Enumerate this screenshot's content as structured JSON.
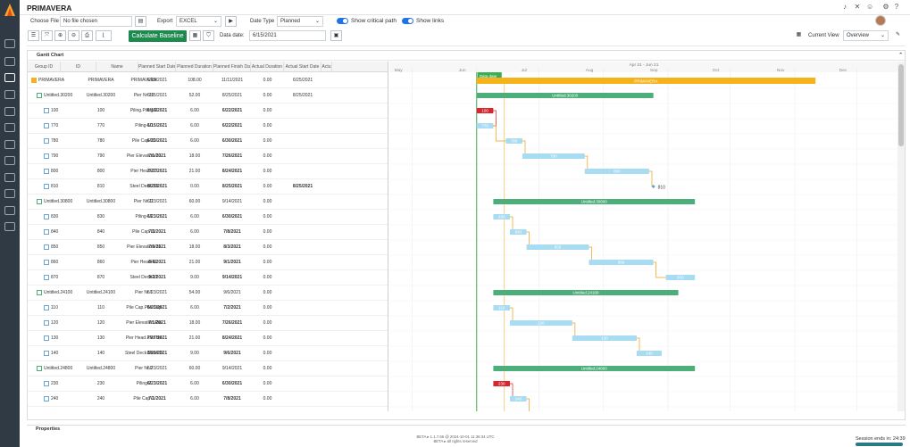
{
  "app": {
    "title": "PRIMAVERA"
  },
  "toolbar": {
    "choose_file_label": "Choose File",
    "no_file_text": "No file chosen",
    "export_label": "Export",
    "export_value": "EXCEL",
    "date_type_label": "Date Type",
    "date_type_value": "Planned",
    "show_critical_label": "Show critical path",
    "show_links_label": "Show links",
    "calc_baseline_label": "Calculate Baseline",
    "data_date_label": "Data date:",
    "data_date_value": "6/15/2021",
    "current_view_label": "Current View",
    "current_view_value": "Overview"
  },
  "gantt": {
    "panel_title": "Gantt Chart",
    "columns": [
      "Group ID",
      "ID",
      "Name",
      "Planned Start Date",
      "Planned Duration",
      "Planned Finish Date",
      "Actual Duration",
      "Actual Start Date",
      "Actu"
    ],
    "rows": [
      {
        "gid": "PRIMAVERA",
        "id": "PRIMAVERA",
        "name": "PRIMAVERA",
        "ps": "6/15/2021",
        "pd": "108.00",
        "pf": "11/11/2021",
        "ad": "0.00",
        "as": "6/25/2021",
        "type": "root"
      },
      {
        "gid": "Untitled.30200",
        "id": "Untitled.30200",
        "name": "Pier Nr 10",
        "ps": "6/15/2021",
        "pd": "52.00",
        "pf": "8/25/2021",
        "ad": "0.00",
        "as": "8/25/2021",
        "type": "group"
      },
      {
        "gid": "100",
        "id": "100",
        "name": "Piling.Piling-1",
        "ps": "6/15/2021",
        "pd": "6.00",
        "pf": "6/22/2021",
        "ad": "0.00",
        "as": "",
        "type": "task"
      },
      {
        "gid": "770",
        "id": "770",
        "name": "Piling-10",
        "ps": "6/15/2021",
        "pd": "6.00",
        "pf": "6/22/2021",
        "ad": "0.00",
        "as": "",
        "type": "task"
      },
      {
        "gid": "780",
        "id": "780",
        "name": "Pile Cap-10",
        "ps": "6/23/2021",
        "pd": "6.00",
        "pf": "6/30/2021",
        "ad": "0.00",
        "as": "",
        "type": "task"
      },
      {
        "gid": "790",
        "id": "790",
        "name": "Pier Elevation-10",
        "ps": "7/1/2021",
        "pd": "18.00",
        "pf": "7/26/2021",
        "ad": "0.00",
        "as": "",
        "type": "task"
      },
      {
        "gid": "800",
        "id": "800",
        "name": "Pier Head-10",
        "ps": "7/27/2021",
        "pd": "21.00",
        "pf": "8/24/2021",
        "ad": "0.00",
        "as": "",
        "type": "task"
      },
      {
        "gid": "810",
        "id": "810",
        "name": "Steel Deck-10",
        "ps": "8/25/2021",
        "pd": "0.00",
        "pf": "8/25/2021",
        "ad": "0.00",
        "as": "8/25/2021",
        "type": "task"
      },
      {
        "gid": "Untitled.30800",
        "id": "Untitled.30800",
        "name": "Pier Nr 11",
        "ps": "6/23/2021",
        "pd": "60.00",
        "pf": "9/14/2021",
        "ad": "0.00",
        "as": "",
        "type": "group"
      },
      {
        "gid": "830",
        "id": "830",
        "name": "Piling-11",
        "ps": "6/23/2021",
        "pd": "6.00",
        "pf": "6/30/2021",
        "ad": "0.00",
        "as": "",
        "type": "task"
      },
      {
        "gid": "840",
        "id": "840",
        "name": "Pile Cap-11",
        "ps": "7/1/2021",
        "pd": "6.00",
        "pf": "7/8/2021",
        "ad": "0.00",
        "as": "",
        "type": "task"
      },
      {
        "gid": "850",
        "id": "850",
        "name": "Pier Elevation-11",
        "ps": "7/9/2021",
        "pd": "18.00",
        "pf": "8/3/2021",
        "ad": "0.00",
        "as": "",
        "type": "task"
      },
      {
        "gid": "860",
        "id": "860",
        "name": "Pier Head-11",
        "ps": "8/4/2021",
        "pd": "21.00",
        "pf": "9/1/2021",
        "ad": "0.00",
        "as": "",
        "type": "task"
      },
      {
        "gid": "870",
        "id": "870",
        "name": "Steel Deck-11",
        "ps": "9/2/2021",
        "pd": "9.00",
        "pf": "9/14/2021",
        "ad": "0.00",
        "as": "",
        "type": "task"
      },
      {
        "gid": "Untitled.24100",
        "id": "Untitled.24100",
        "name": "Pier Nr 1",
        "ps": "6/23/2021",
        "pd": "54.00",
        "pf": "9/6/2021",
        "ad": "0.00",
        "as": "",
        "type": "group"
      },
      {
        "gid": "110",
        "id": "110",
        "name": "Pile Cap.Pile Cap",
        "ps": "6/23/2021",
        "pd": "6.00",
        "pf": "7/2/2021",
        "ad": "0.00",
        "as": "",
        "type": "task"
      },
      {
        "gid": "120",
        "id": "120",
        "name": "Pier Elevation.Pie",
        "ps": "7/1/2021",
        "pd": "18.00",
        "pf": "7/26/2021",
        "ad": "0.00",
        "as": "",
        "type": "task"
      },
      {
        "gid": "130",
        "id": "130",
        "name": "Pier Head.Pier He",
        "ps": "7/27/2021",
        "pd": "21.00",
        "pf": "8/24/2021",
        "ad": "0.00",
        "as": "",
        "type": "task"
      },
      {
        "gid": "140",
        "id": "140",
        "name": "Steel Deck.Steel D",
        "ps": "8/25/2021",
        "pd": "9.00",
        "pf": "9/6/2021",
        "ad": "0.00",
        "as": "",
        "type": "task"
      },
      {
        "gid": "Untitled.24800",
        "id": "Untitled.24800",
        "name": "Pier Nr 2",
        "ps": "6/23/2021",
        "pd": "60.00",
        "pf": "9/14/2021",
        "ad": "0.00",
        "as": "",
        "type": "group"
      },
      {
        "gid": "230",
        "id": "230",
        "name": "Piling-2",
        "ps": "6/23/2021",
        "pd": "6.00",
        "pf": "6/30/2021",
        "ad": "0.00",
        "as": "",
        "type": "task"
      },
      {
        "gid": "240",
        "id": "240",
        "name": "Pile Cap-2",
        "ps": "7/1/2021",
        "pd": "6.00",
        "pf": "7/8/2021",
        "ad": "0.00",
        "as": "",
        "type": "task"
      },
      {
        "gid": "250",
        "id": "250",
        "name": "Pier Elevation-2",
        "ps": "7/9/2021",
        "pd": "18.00",
        "pf": "8/3/2021",
        "ad": "0.00",
        "as": "",
        "type": "task"
      }
    ],
    "timeline": {
      "range_label": "Apr 21 - Jun 21",
      "months": [
        "May",
        "Jun",
        "Jul",
        "Aug",
        "Sep",
        "Oct",
        "Nov",
        "Dec"
      ],
      "data_date_label": "Data date"
    },
    "bars": [
      {
        "label": "PRIMAVERA",
        "start": "2021-06-01",
        "end": "2021-11-11",
        "kind": "root"
      },
      {
        "label": "Untitled.30200",
        "start": "2021-06-01",
        "end": "2021-08-25",
        "kind": "group"
      },
      {
        "label": "100",
        "start": "2021-06-01",
        "end": "2021-06-09",
        "kind": "critical"
      },
      {
        "label": "770",
        "start": "2021-06-01",
        "end": "2021-06-09",
        "kind": "task"
      },
      {
        "label": "780",
        "start": "2021-06-15",
        "end": "2021-06-23",
        "kind": "task"
      },
      {
        "label": "790",
        "start": "2021-06-23",
        "end": "2021-07-23",
        "kind": "task"
      },
      {
        "label": "800",
        "start": "2021-07-23",
        "end": "2021-08-23",
        "kind": "task"
      },
      {
        "label": "810",
        "start": "2021-08-25",
        "end": "2021-08-25",
        "kind": "milestone"
      },
      {
        "label": "Untitled.30800",
        "start": "2021-06-09",
        "end": "2021-09-14",
        "kind": "group"
      },
      {
        "label": "830",
        "start": "2021-06-09",
        "end": "2021-06-17",
        "kind": "task"
      },
      {
        "label": "840",
        "start": "2021-06-17",
        "end": "2021-06-25",
        "kind": "task"
      },
      {
        "label": "850",
        "start": "2021-06-25",
        "end": "2021-07-25",
        "kind": "task"
      },
      {
        "label": "860",
        "start": "2021-07-25",
        "end": "2021-08-25",
        "kind": "task"
      },
      {
        "label": "870",
        "start": "2021-08-31",
        "end": "2021-09-14",
        "kind": "task"
      },
      {
        "label": "Untitled.24100",
        "start": "2021-06-09",
        "end": "2021-09-06",
        "kind": "group"
      },
      {
        "label": "110",
        "start": "2021-06-09",
        "end": "2021-06-17",
        "kind": "task"
      },
      {
        "label": "120",
        "start": "2021-06-17",
        "end": "2021-07-17",
        "kind": "task"
      },
      {
        "label": "130",
        "start": "2021-07-17",
        "end": "2021-08-17",
        "kind": "task"
      },
      {
        "label": "140",
        "start": "2021-08-17",
        "end": "2021-08-29",
        "kind": "task"
      },
      {
        "label": "Untitled.24800",
        "start": "2021-06-09",
        "end": "2021-09-14",
        "kind": "group"
      },
      {
        "label": "230",
        "start": "2021-06-09",
        "end": "2021-06-17",
        "kind": "critical"
      },
      {
        "label": "240",
        "start": "2021-06-17",
        "end": "2021-06-25",
        "kind": "task"
      },
      {
        "label": "250",
        "start": "2021-06-25",
        "end": "2021-07-25",
        "kind": "task"
      }
    ]
  },
  "properties_title": "Properties",
  "footer": {
    "line1": "BETA ▸ 1.1.7.56 @ 2024-10-01 11:36:34 UTC",
    "line2": "BETA ▸ all rights reserved"
  },
  "session": {
    "label": "Session ends in: 24:39",
    "remaining_fraction": 1.0
  },
  "colors": {
    "sidebar": "#2f3a45",
    "primary": "#1f8a4f",
    "toggle": "#1e73e8",
    "root_bar": "#f6b21a",
    "group_bar": "#4caf7a",
    "task_bar": "#a8dcf2",
    "critical_bar": "#d9262c",
    "link": "#f39c12",
    "data_date_line": "#3cae52"
  }
}
